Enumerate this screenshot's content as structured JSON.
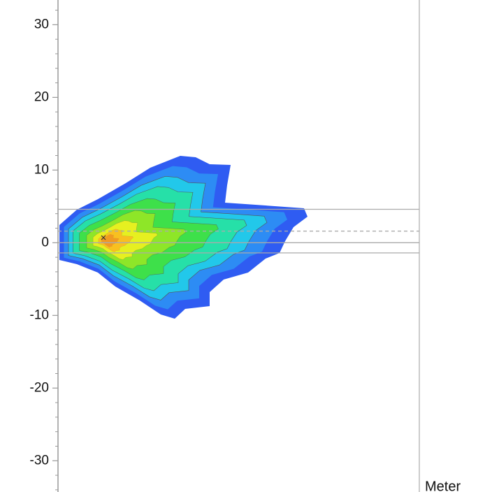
{
  "chart_data": {
    "type": "density",
    "y_unit": "Meter",
    "ylim": [
      -34.3,
      33.4
    ],
    "yticks": [
      -30,
      -20,
      -10,
      0,
      10,
      20,
      30
    ],
    "minor_yticks": [
      -34,
      -32,
      -28,
      -26,
      -24,
      -22,
      -18,
      -16,
      -14,
      -12,
      -8,
      -6,
      -4,
      -2,
      2,
      4,
      6,
      8,
      12,
      14,
      16,
      18,
      22,
      24,
      26,
      28,
      32
    ],
    "reference_lines": [
      {
        "value": 4.6,
        "style": "solid"
      },
      {
        "value": 1.6,
        "style": "dashed"
      },
      {
        "value": 0,
        "style": "solid"
      },
      {
        "value": -1.4,
        "style": "solid"
      }
    ]
  }
}
